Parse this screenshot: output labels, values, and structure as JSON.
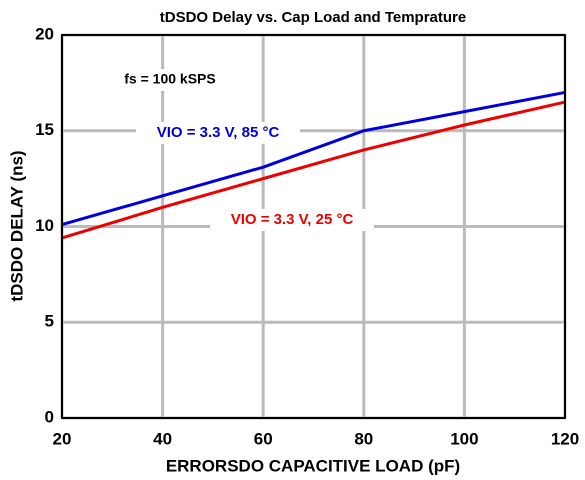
{
  "chart_data": {
    "type": "line",
    "title": "tDSDO Delay vs. Cap Load and Temprature",
    "x_label": "ERRORSDO CAPACITIVE LOAD (pF)",
    "y_label": "tDSDO DELAY (ns)",
    "annotation": "fs = 100 kSPS",
    "x": [
      20,
      40,
      60,
      80,
      100,
      120
    ],
    "series": [
      {
        "name": "VIO = 3.3 V, 85 °C",
        "color": "#0000dd",
        "values": [
          10.1,
          11.6,
          13.1,
          15.0,
          16.0,
          17.0
        ]
      },
      {
        "name": "VIO = 3.3 V, 25 °C",
        "color": "#ee0000",
        "values": [
          9.4,
          11.0,
          12.5,
          14.0,
          15.3,
          16.5
        ]
      }
    ],
    "xlim": [
      20,
      120
    ],
    "xticks": [
      20,
      40,
      60,
      80,
      100,
      120
    ],
    "ylim": [
      0,
      20
    ],
    "yticks": [
      0,
      5,
      10,
      15,
      20
    ],
    "grid": true
  }
}
